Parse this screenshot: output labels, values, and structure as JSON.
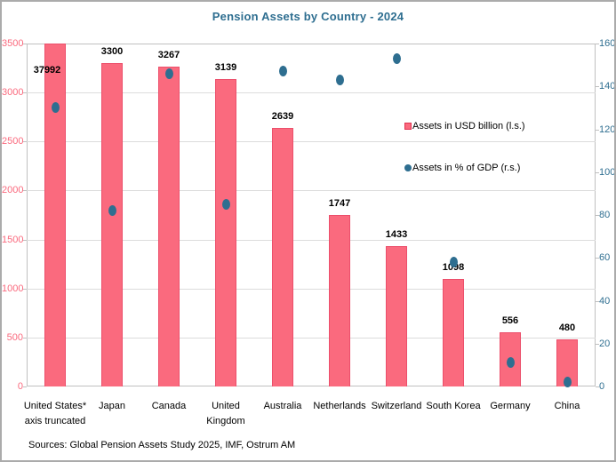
{
  "title": "Pension Assets by Country - 2024",
  "source": "Sources: Global Pension Assets Study 2025, IMF, Ostrum AM",
  "legend": {
    "bars": "Assets in USD billion (l.s.)",
    "dots": "Assets in % of GDP (r.s.)"
  },
  "colors": {
    "bar_fill": "#FA6A7E",
    "bar_border": "#EC4F6B",
    "dot_fill": "#2E6E90",
    "title_text": "#2E6E90",
    "left_axis_text": "#FA6A7E",
    "right_axis_text": "#2E6E90",
    "gridline": "#DCDCDC",
    "plot_border": "#C0C0C0",
    "value_label_text": "#000000"
  },
  "chart_data": {
    "type": "bar",
    "title": "Pension Assets by Country - 2024",
    "categories": [
      "United States*\naxis truncated",
      "Japan",
      "Canada",
      "United\nKingdom",
      "Australia",
      "Netherlands",
      "Switzerland",
      "South Korea",
      "Germany",
      "China"
    ],
    "series": [
      {
        "name": "Assets in USD billion (l.s.)",
        "type": "bar",
        "axis": "left",
        "values": [
          37992,
          3300,
          3267,
          3139,
          2639,
          1747,
          1433,
          1098,
          556,
          480
        ],
        "data_labels": [
          "37992",
          "3300",
          "3267",
          "3139",
          "2639",
          "1747",
          "1433",
          "1098",
          "556",
          "480"
        ]
      },
      {
        "name": "Assets in % of GDP (r.s.)",
        "type": "scatter",
        "axis": "right",
        "values": [
          130,
          82,
          146,
          85,
          147,
          143,
          153,
          58,
          11,
          2
        ]
      }
    ],
    "left_axis": {
      "min": 0,
      "max": 3500,
      "step": 500,
      "tick_labels": [
        "0",
        "500",
        "1000",
        "1500",
        "2000",
        "2500",
        "3000",
        "3500"
      ]
    },
    "right_axis": {
      "min": 0,
      "max": 160,
      "step": 20,
      "tick_labels": [
        "0",
        "20",
        "40",
        "60",
        "80",
        "100",
        "120",
        "140",
        "160"
      ]
    },
    "truncated_bar_index": 0,
    "truncated_note": "axis truncated",
    "grid": true,
    "legend_position": "inside-right",
    "xlabel": "",
    "ylabel": ""
  }
}
